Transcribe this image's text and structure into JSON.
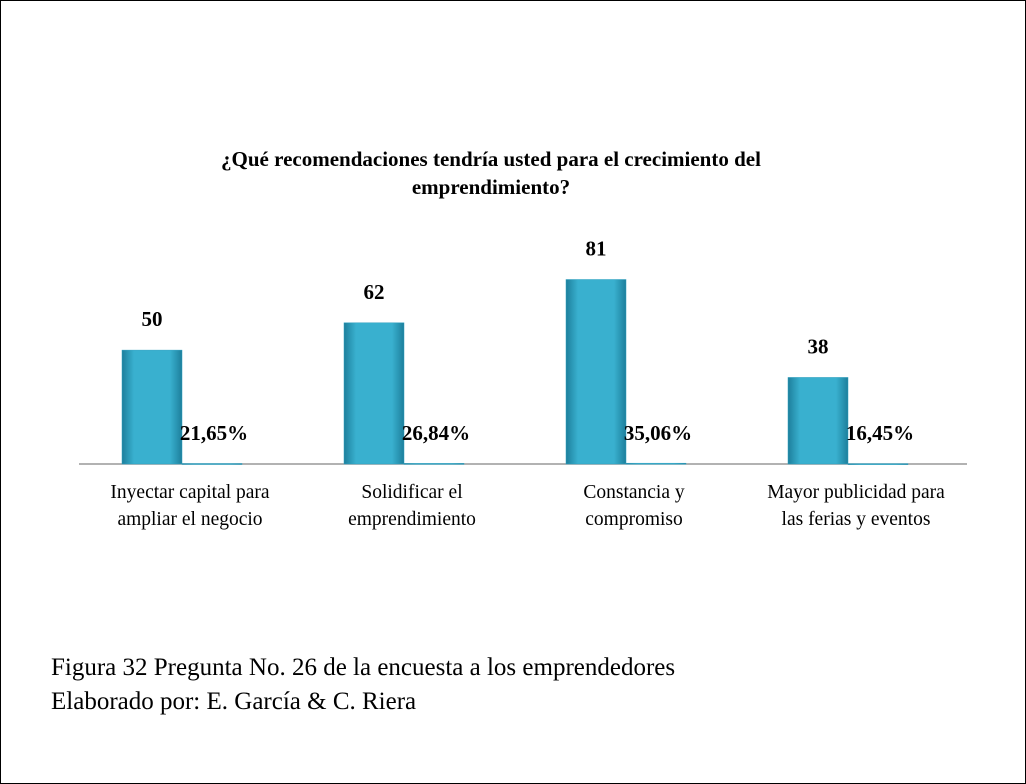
{
  "chart_data": {
    "type": "bar",
    "title": "¿Qué recomendaciones tendría usted para el crecimiento del emprendimiento?",
    "categories": [
      "Inyectar capital para ampliar el negocio",
      "Solidificar el emprendimiento",
      "Constancia y compromiso",
      "Mayor publicidad para las ferias y eventos"
    ],
    "series": [
      {
        "color": "#2f9fbf",
        "values": [
          50,
          62,
          81,
          38
        ]
      },
      {
        "color": "#2f9fbf",
        "values": [
          0.2165,
          0.2684,
          0.3506,
          0.1645
        ],
        "value_labels": [
          "21,65%",
          "26,84%",
          "35,06%",
          "16,45%"
        ]
      }
    ],
    "ylim": [
      0,
      90
    ]
  },
  "caption": [
    "Figura 32 Pregunta No. 26 de la encuesta a los emprendedores",
    "Elaborado por: E. García  & C. Riera"
  ]
}
